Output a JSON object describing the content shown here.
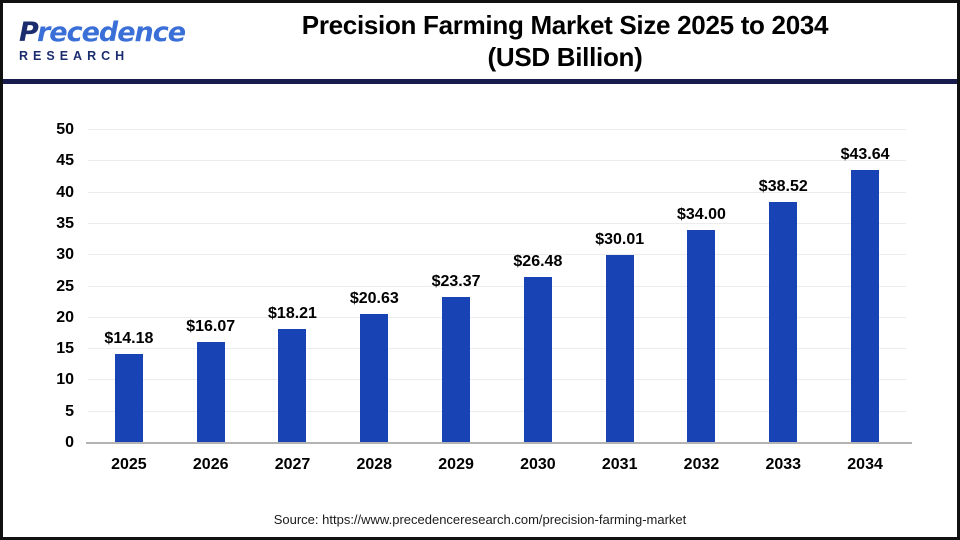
{
  "logo": {
    "name": "Precedence",
    "subtitle": "RESEARCH"
  },
  "header": {
    "title_line1": "Precision Farming Market Size 2025 to 2034",
    "title_line2": "(USD Billion)"
  },
  "chart_data": {
    "type": "bar",
    "title": "Precision Farming Market Size 2025 to 2034 (USD Billion)",
    "categories": [
      "2025",
      "2026",
      "2027",
      "2028",
      "2029",
      "2030",
      "2031",
      "2032",
      "2033",
      "2034"
    ],
    "values": [
      14.18,
      16.07,
      18.21,
      20.63,
      23.37,
      26.48,
      30.01,
      34.0,
      38.52,
      43.64
    ],
    "value_labels": [
      "$14.18",
      "$16.07",
      "$18.21",
      "$20.63",
      "$23.37",
      "$26.48",
      "$30.01",
      "$34.00",
      "$38.52",
      "$43.64"
    ],
    "xlabel": "",
    "ylabel": "",
    "ylim": [
      0,
      50
    ],
    "ytick_step": 5,
    "grid": true,
    "legend": "none",
    "bar_color": "#1843b5"
  },
  "source": {
    "text": "Source: https://www.precedenceresearch.com/precision-farming-market"
  },
  "colors": {
    "bar": "#1843b5",
    "header_rule": "#191d4d",
    "grid": "#ececec",
    "axis_line": "#b3b3b3",
    "logo_navy": "#1b2d6e",
    "logo_blue": "#3a6fd8"
  }
}
